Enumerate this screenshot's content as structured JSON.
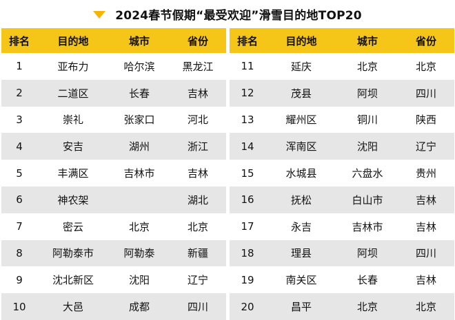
{
  "title": "2024春节假期“最受欢迎”滑雪目的地TOP20",
  "title_icon": "triangle-down-icon",
  "accent_color": "#f5c518",
  "headers": {
    "rank": "排名",
    "destination": "目的地",
    "city": "城市",
    "province": "省份"
  },
  "left": [
    {
      "rank": "1",
      "destination": "亚布力",
      "city": "哈尔滨",
      "province": "黑龙江"
    },
    {
      "rank": "2",
      "destination": "二道区",
      "city": "长春",
      "province": "吉林"
    },
    {
      "rank": "3",
      "destination": "崇礼",
      "city": "张家口",
      "province": "河北"
    },
    {
      "rank": "4",
      "destination": "安吉",
      "city": "湖州",
      "province": "浙江"
    },
    {
      "rank": "5",
      "destination": "丰满区",
      "city": "吉林市",
      "province": "吉林"
    },
    {
      "rank": "6",
      "destination": "神农架",
      "city": "",
      "province": "湖北"
    },
    {
      "rank": "7",
      "destination": "密云",
      "city": "北京",
      "province": "北京"
    },
    {
      "rank": "8",
      "destination": "阿勒泰市",
      "city": "阿勒泰",
      "province": "新疆"
    },
    {
      "rank": "9",
      "destination": "沈北新区",
      "city": "沈阳",
      "province": "辽宁"
    },
    {
      "rank": "10",
      "destination": "大邑",
      "city": "成都",
      "province": "四川"
    }
  ],
  "right": [
    {
      "rank": "11",
      "destination": "延庆",
      "city": "北京",
      "province": "北京"
    },
    {
      "rank": "12",
      "destination": "茂县",
      "city": "阿坝",
      "province": "四川"
    },
    {
      "rank": "13",
      "destination": "耀州区",
      "city": "铜川",
      "province": "陕西"
    },
    {
      "rank": "14",
      "destination": "浑南区",
      "city": "沈阳",
      "province": "辽宁"
    },
    {
      "rank": "15",
      "destination": "水城县",
      "city": "六盘水",
      "province": "贵州"
    },
    {
      "rank": "16",
      "destination": "抚松",
      "city": "白山市",
      "province": "吉林"
    },
    {
      "rank": "17",
      "destination": "永吉",
      "city": "吉林市",
      "province": "吉林"
    },
    {
      "rank": "18",
      "destination": "理县",
      "city": "阿坝",
      "province": "四川"
    },
    {
      "rank": "19",
      "destination": "南关区",
      "city": "长春",
      "province": "吉林"
    },
    {
      "rank": "20",
      "destination": "昌平",
      "city": "北京",
      "province": "北京"
    }
  ]
}
